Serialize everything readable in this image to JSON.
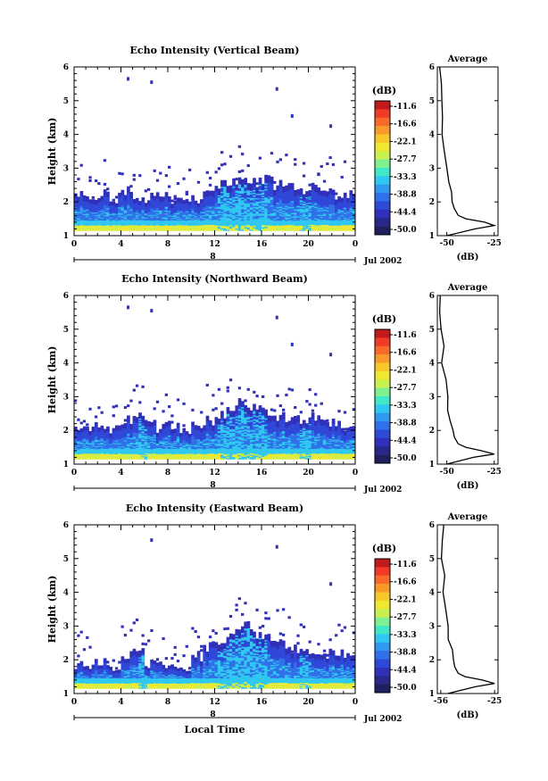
{
  "colorbar_unit": "(dB)",
  "colorbar_ticks": [
    "-11.6",
    "-16.6",
    "-22.1",
    "-27.7",
    "-33.3",
    "-38.8",
    "-44.4",
    "-50.0"
  ],
  "colorbar_colors": [
    "#c01a1a",
    "#f03a2a",
    "#f86a2a",
    "#f89a2a",
    "#f8c82a",
    "#f0e830",
    "#c8f050",
    "#80f090",
    "#40e8c8",
    "#30c8f0",
    "#3098f0",
    "#3070e8",
    "#3048d8",
    "#3030b8",
    "#282888",
    "#202060"
  ],
  "colors": {
    "low": "#3030c0",
    "mid": "#30a0f0",
    "high": "#f0e830",
    "band": "#3050e0"
  },
  "x_ticks": [
    "0",
    "4",
    "8",
    "12",
    "16",
    "20",
    "0"
  ],
  "date_tick": "8",
  "date_label": "Jul 2002",
  "xlabel": "Local Time",
  "ylabel": "Height (km)",
  "avg_title": "Average",
  "avg_xlabel": "(dB)",
  "chart_data": [
    {
      "type": "heatmap",
      "title": "Echo Intensity (Vertical Beam)",
      "ylabel": "Height (km)",
      "xlabel": "",
      "ylim": [
        1,
        6
      ],
      "xlim": [
        0,
        24
      ],
      "yticks": [
        "1",
        "2",
        "3",
        "4",
        "5",
        "6"
      ],
      "x_ticks": [
        "0",
        "4",
        "8",
        "12",
        "16",
        "20",
        "0"
      ],
      "colorbar": {
        "unit": "(dB)",
        "ticks": [
          "-11.6",
          "-16.6",
          "-22.1",
          "-27.7",
          "-33.3",
          "-38.8",
          "-44.4",
          "-50.0"
        ]
      },
      "echo_top_km": [
        2.2,
        2.1,
        2.2,
        2.1,
        2.3,
        2.2,
        2.1,
        2.2,
        2.1,
        2.0,
        2.1,
        2.3,
        2.5,
        2.6,
        2.6,
        2.6,
        2.7,
        2.5,
        2.4,
        2.3,
        2.5,
        2.3,
        2.2,
        2.2
      ],
      "average_profile": {
        "title": "Average",
        "xlabel": "(dB)",
        "xticks": [
          "-50",
          "-25"
        ],
        "xlim": [
          -55,
          -23
        ],
        "height_km": [
          1.0,
          1.2,
          1.3,
          1.4,
          1.5,
          1.6,
          1.8,
          2.0,
          2.3,
          2.6,
          3.0,
          3.5,
          4.0,
          4.5,
          5.0,
          5.5,
          6.0
        ],
        "db": [
          -50,
          -35,
          -25,
          -30,
          -40,
          -44,
          -46,
          -47,
          -48,
          -49,
          -50,
          -51,
          -52,
          -52,
          -53,
          -53,
          -53
        ]
      }
    },
    {
      "type": "heatmap",
      "title": "Echo Intensity (Northward Beam)",
      "ylabel": "Height (km)",
      "xlabel": "",
      "ylim": [
        1,
        6
      ],
      "xlim": [
        0,
        24
      ],
      "yticks": [
        "1",
        "2",
        "3",
        "4",
        "5",
        "6"
      ],
      "x_ticks": [
        "0",
        "4",
        "8",
        "12",
        "16",
        "20",
        "0"
      ],
      "colorbar": {
        "unit": "(dB)",
        "ticks": [
          "-11.6",
          "-16.6",
          "-22.1",
          "-27.7",
          "-33.3",
          "-38.8",
          "-44.4",
          "-50.0"
        ]
      },
      "echo_top_km": [
        2.0,
        2.1,
        2.2,
        2.0,
        2.3,
        2.4,
        2.2,
        2.1,
        2.2,
        2.0,
        2.1,
        2.3,
        2.5,
        2.6,
        2.8,
        2.7,
        2.6,
        2.4,
        2.3,
        2.3,
        2.4,
        2.2,
        2.2,
        2.1
      ],
      "average_profile": {
        "title": "Average",
        "xlabel": "(dB)",
        "xticks": [
          "-50",
          "-25"
        ],
        "xlim": [
          -55,
          -23
        ],
        "height_km": [
          1.0,
          1.2,
          1.3,
          1.4,
          1.5,
          1.6,
          1.8,
          2.0,
          2.3,
          2.6,
          3.0,
          3.5,
          4.0,
          4.5,
          5.0,
          5.5,
          6.0
        ],
        "db": [
          -50,
          -36,
          -25,
          -32,
          -40,
          -44,
          -46,
          -47,
          -48,
          -49,
          -50,
          -51,
          -52,
          -52,
          -53,
          -53,
          -53
        ]
      }
    },
    {
      "type": "heatmap",
      "title": "Echo Intensity (Eastward Beam)",
      "ylabel": "Height (km)",
      "xlabel": "Local Time",
      "ylim": [
        1,
        6
      ],
      "xlim": [
        0,
        24
      ],
      "yticks": [
        "1",
        "2",
        "3",
        "4",
        "5",
        "6"
      ],
      "x_ticks": [
        "0",
        "4",
        "8",
        "12",
        "16",
        "20",
        "0"
      ],
      "colorbar": {
        "unit": "(dB)",
        "ticks": [
          "-11.6",
          "-16.6",
          "-22.1",
          "-27.7",
          "-33.3",
          "-38.8",
          "-44.4",
          "-50.0"
        ]
      },
      "echo_top_km": [
        1.8,
        1.9,
        2.0,
        1.8,
        2.1,
        2.2,
        1.9,
        1.8,
        1.9,
        1.8,
        2.1,
        2.4,
        2.6,
        2.8,
        3.0,
        2.8,
        2.6,
        2.5,
        2.3,
        2.2,
        2.3,
        2.2,
        2.2,
        2.1
      ],
      "average_profile": {
        "title": "Average",
        "xlabel": "(dB)",
        "xticks": [
          "-56",
          "-25"
        ],
        "xlim": [
          -58,
          -23
        ],
        "height_km": [
          1.0,
          1.2,
          1.3,
          1.4,
          1.5,
          1.6,
          1.8,
          2.0,
          2.3,
          2.6,
          3.0,
          3.5,
          4.0,
          4.5,
          5.0,
          5.5,
          6.0
        ],
        "db": [
          -52,
          -36,
          -25,
          -32,
          -42,
          -46,
          -48,
          -49,
          -50,
          -51,
          -52,
          -53,
          -54,
          -54,
          -55,
          -55,
          -55
        ]
      }
    }
  ]
}
